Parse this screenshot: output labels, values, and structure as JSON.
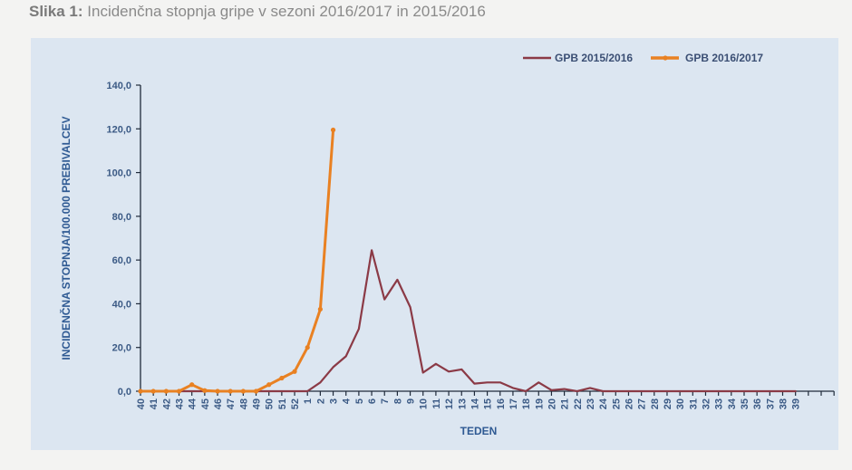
{
  "caption": {
    "label": "Slika 1:",
    "text": " Incidenčna stopnja gripe v sezoni 2016/2017 in 2015/2016"
  },
  "colors": {
    "series_2015_2016": "#8b3a46",
    "series_2016_2017": "#e98122",
    "panel_bg": "#dce6f1",
    "axis_text": "#3b5a85"
  },
  "chart_data": {
    "type": "line",
    "title": "Incidenčna stopnja gripe v sezoni 2016/2017 in 2015/2016",
    "xlabel": "TEDEN",
    "ylabel": "INCIDENČNA STOPNJA/100.000 PREBIVALCEV",
    "ylim": [
      0,
      140
    ],
    "yticks": [
      "0,0",
      "20,0",
      "40,0",
      "60,0",
      "80,0",
      "100,0",
      "120,0",
      "140,0"
    ],
    "legend_position": "top-right",
    "grid": false,
    "categories": [
      "40",
      "41",
      "42",
      "43",
      "44",
      "45",
      "46",
      "47",
      "48",
      "49",
      "50",
      "51",
      "52",
      "1",
      "2",
      "3",
      "4",
      "5",
      "6",
      "7",
      "8",
      "9",
      "10",
      "11",
      "12",
      "13",
      "14",
      "15",
      "16",
      "17",
      "18",
      "19",
      "20",
      "21",
      "22",
      "23",
      "24",
      "25",
      "26",
      "27",
      "28",
      "29",
      "30",
      "31",
      "32",
      "33",
      "34",
      "35",
      "36",
      "37",
      "38",
      "39"
    ],
    "series": [
      {
        "name": "GPB 2015/2016",
        "color": "#8b3a46",
        "markers": false,
        "values": [
          0,
          0,
          0,
          0,
          0,
          0,
          0,
          0,
          0,
          0,
          0,
          0,
          0,
          0,
          4,
          11,
          16,
          28.5,
          64.5,
          42,
          51,
          38.5,
          8.5,
          12.5,
          9,
          10,
          3.5,
          4,
          4,
          1.5,
          0,
          4,
          0.5,
          1,
          0,
          1.5,
          0,
          0,
          0,
          0,
          0,
          0,
          0,
          0,
          0,
          0,
          0,
          0,
          0,
          0,
          0,
          0
        ]
      },
      {
        "name": "GPB 2016/2017",
        "color": "#e98122",
        "markers": true,
        "values": [
          0,
          0,
          0,
          0,
          3,
          0.3,
          0,
          0,
          0,
          0,
          3,
          6,
          9,
          20,
          37.5,
          119.5
        ]
      }
    ]
  }
}
